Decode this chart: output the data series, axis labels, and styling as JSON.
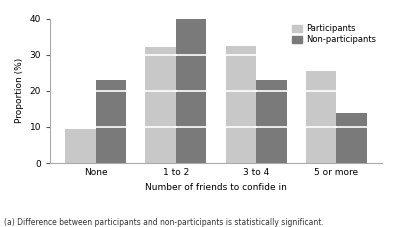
{
  "categories": [
    "None",
    "1 to 2",
    "3 to 4",
    "5 or more"
  ],
  "participants": [
    9.5,
    32.0,
    32.5,
    25.5
  ],
  "non_participants": [
    23.0,
    40.0,
    23.0,
    14.0
  ],
  "participant_color": "#c8c8c8",
  "non_participant_color": "#7a7a7a",
  "ylabel": "Proportion (%)",
  "xlabel": "Number of friends to confide in",
  "ylim": [
    0,
    40
  ],
  "yticks": [
    0,
    10,
    20,
    30,
    40
  ],
  "legend_labels": [
    "Participants",
    "Non-participants"
  ],
  "footnote": "(a) Difference between participants and non-participants is statistically significant.",
  "bar_width": 0.38,
  "white_line_color": "#ffffff",
  "white_line_lw": 1.2,
  "background_color": "#ffffff",
  "spine_color": "#aaaaaa",
  "tick_color": "#555555"
}
